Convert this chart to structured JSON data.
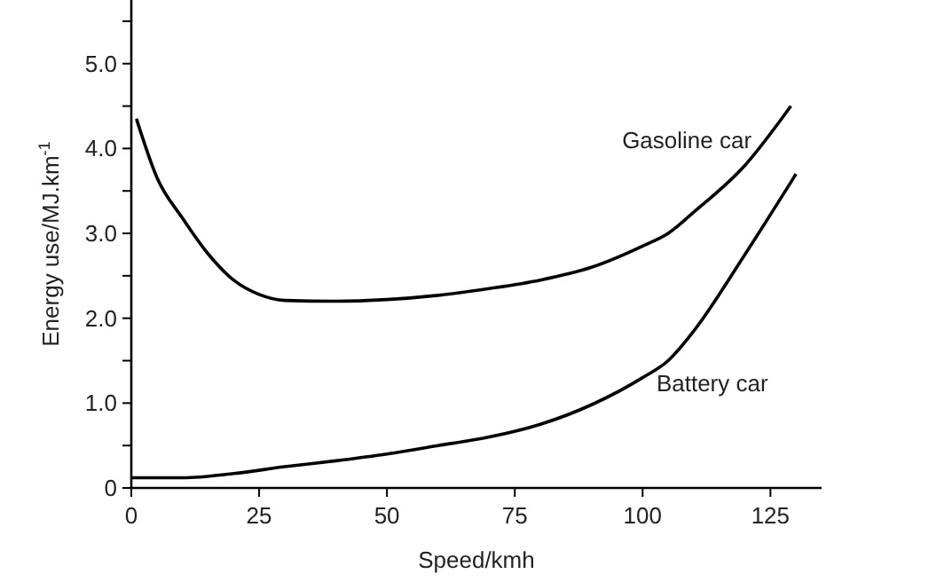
{
  "chart_data": {
    "type": "line",
    "xlabel": "Speed/kmh",
    "ylabel": "Energy use/MJ.km$^{-1}$",
    "xlim": [
      0,
      135
    ],
    "ylim": [
      0,
      5.75
    ],
    "xticks": [
      0,
      25,
      50,
      75,
      100,
      125
    ],
    "yticks": [
      {
        "value": 0,
        "label": "0"
      },
      {
        "value": 0.5,
        "label": null
      },
      {
        "value": 1,
        "label": "1.0"
      },
      {
        "value": 1.5,
        "label": null
      },
      {
        "value": 2,
        "label": "2.0"
      },
      {
        "value": 2.5,
        "label": null
      },
      {
        "value": 3,
        "label": "3.0"
      },
      {
        "value": 3.5,
        "label": null
      },
      {
        "value": 4,
        "label": "4.0"
      },
      {
        "value": 4.5,
        "label": null
      },
      {
        "value": 5,
        "label": "5.0"
      },
      {
        "value": 5.5,
        "label": null
      }
    ],
    "grid": false,
    "marker": "none",
    "line_style": "solid",
    "series": [
      {
        "name": "Gasoline car",
        "color": "#000000",
        "x": [
          1,
          5,
          10,
          15,
          20,
          25,
          30,
          40,
          50,
          60,
          70,
          80,
          90,
          100,
          105,
          110,
          120,
          129
        ],
        "values": [
          4.35,
          3.66,
          3.18,
          2.76,
          2.45,
          2.28,
          2.21,
          2.2,
          2.22,
          2.27,
          2.35,
          2.45,
          2.6,
          2.85,
          3.0,
          3.25,
          3.8,
          4.5
        ]
      },
      {
        "name": "Battery car",
        "color": "#000000",
        "x": [
          0,
          10,
          20,
          30,
          40,
          50,
          60,
          70,
          80,
          90,
          100,
          105,
          110,
          120,
          130
        ],
        "values": [
          0.12,
          0.12,
          0.17,
          0.25,
          0.32,
          0.4,
          0.5,
          0.6,
          0.75,
          0.98,
          1.3,
          1.5,
          1.85,
          2.75,
          3.7
        ]
      }
    ]
  }
}
